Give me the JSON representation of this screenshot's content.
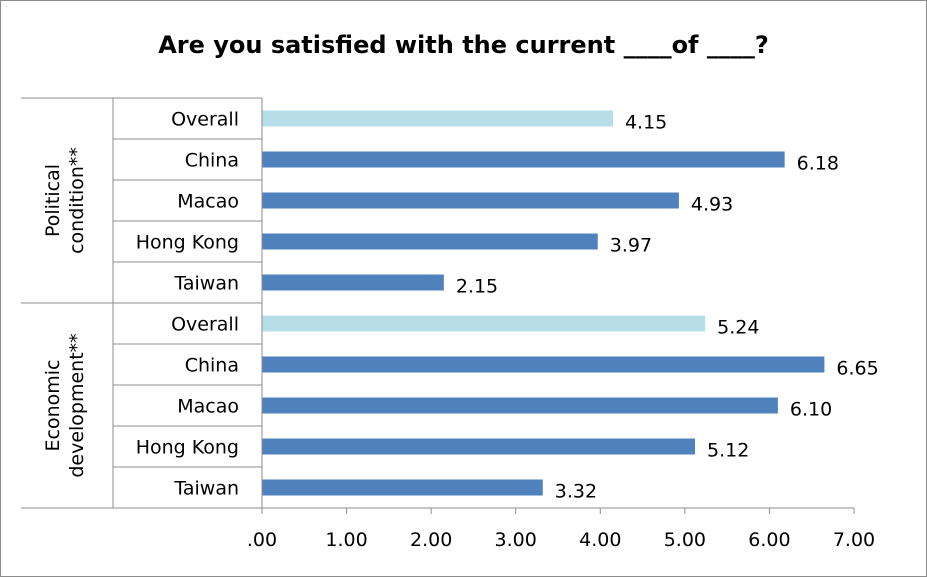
{
  "chart_data": {
    "type": "bar",
    "orientation": "horizontal",
    "title": "Are you satisfied with the current ____of ____?",
    "xlim": [
      0,
      7
    ],
    "x_ticks": [
      ".00",
      "1.00",
      "2.00",
      "3.00",
      "4.00",
      "5.00",
      "6.00",
      "7.00"
    ],
    "grid": false,
    "colors": {
      "overall": "#b7dde8",
      "region": "#4f81bd"
    },
    "groups": [
      {
        "label_lines": [
          "Political",
          "condition**"
        ],
        "bars": [
          {
            "category": "Overall",
            "value": 4.15,
            "label": "4.15",
            "kind": "overall"
          },
          {
            "category": "China",
            "value": 6.18,
            "label": "6.18",
            "kind": "region"
          },
          {
            "category": "Macao",
            "value": 4.93,
            "label": "4.93",
            "kind": "region"
          },
          {
            "category": "Hong Kong",
            "value": 3.97,
            "label": "3.97",
            "kind": "region"
          },
          {
            "category": "Taiwan",
            "value": 2.15,
            "label": "2.15",
            "kind": "region"
          }
        ]
      },
      {
        "label_lines": [
          "Economic",
          "development**"
        ],
        "bars": [
          {
            "category": "Overall",
            "value": 5.24,
            "label": "5.24",
            "kind": "overall"
          },
          {
            "category": "China",
            "value": 6.65,
            "label": "6.65",
            "kind": "region"
          },
          {
            "category": "Macao",
            "value": 6.1,
            "label": "6.10",
            "kind": "region"
          },
          {
            "category": "Hong Kong",
            "value": 5.12,
            "label": "5.12",
            "kind": "region"
          },
          {
            "category": "Taiwan",
            "value": 3.32,
            "label": "3.32",
            "kind": "region"
          }
        ]
      }
    ]
  }
}
